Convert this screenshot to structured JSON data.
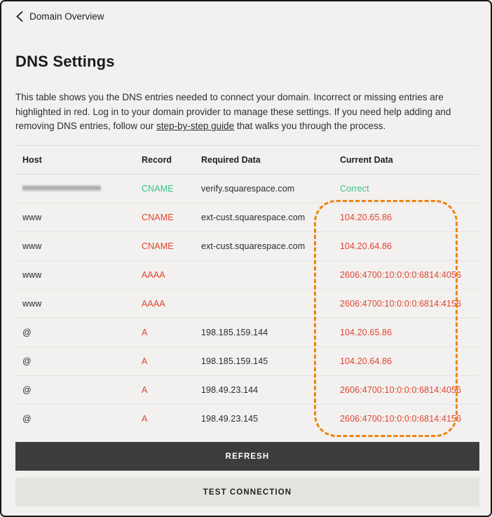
{
  "topbar": {
    "back_label": "Domain Overview"
  },
  "page": {
    "title": "DNS Settings"
  },
  "description": {
    "text_before_link": "This table shows you the DNS entries needed to connect your domain. Incorrect or missing entries are highlighted in red. Log in to your domain provider to manage these settings. If you need help adding and removing DNS entries, follow our ",
    "link_text": "step-by-step guide",
    "text_after_link": " that walks you through the process."
  },
  "table": {
    "headers": {
      "host": "Host",
      "record": "Record",
      "required_data": "Required Data",
      "current_data": "Current Data"
    },
    "rows": [
      {
        "host": "",
        "host_redacted": true,
        "record": "CNAME",
        "required_data": "verify.squarespace.com",
        "current_data": "Correct",
        "status": "ok"
      },
      {
        "host": "www",
        "host_redacted": false,
        "record": "CNAME",
        "required_data": "ext-cust.squarespace.com",
        "current_data": "104.20.65.86",
        "status": "error"
      },
      {
        "host": "www",
        "host_redacted": false,
        "record": "CNAME",
        "required_data": "ext-cust.squarespace.com",
        "current_data": "104.20.64.86",
        "status": "error"
      },
      {
        "host": "www",
        "host_redacted": false,
        "record": "AAAA",
        "required_data": "",
        "current_data": "2606:4700:10:0:0:0:6814:4056",
        "status": "error"
      },
      {
        "host": "www",
        "host_redacted": false,
        "record": "AAAA",
        "required_data": "",
        "current_data": "2606:4700:10:0:0:0:6814:4156",
        "status": "error"
      },
      {
        "host": "@",
        "host_redacted": false,
        "record": "A",
        "required_data": "198.185.159.144",
        "current_data": "104.20.65.86",
        "status": "error"
      },
      {
        "host": "@",
        "host_redacted": false,
        "record": "A",
        "required_data": "198.185.159.145",
        "current_data": "104.20.64.86",
        "status": "error"
      },
      {
        "host": "@",
        "host_redacted": false,
        "record": "A",
        "required_data": "198.49.23.144",
        "current_data": "2606:4700:10:0:0:0:6814:4056",
        "status": "error"
      },
      {
        "host": "@",
        "host_redacted": false,
        "record": "A",
        "required_data": "198.49.23.145",
        "current_data": "2606:4700:10:0:0:0:6814:4156",
        "status": "error"
      }
    ]
  },
  "annotation": {
    "type": "dashed-highlight",
    "target": "current-data-column",
    "color": "#ee8411"
  },
  "buttons": {
    "refresh": "REFRESH",
    "test_connection": "TEST CONNECTION"
  },
  "colors": {
    "ok_green": "#35c18e",
    "error_red": "#e04330",
    "highlight_orange": "#ee8411"
  }
}
